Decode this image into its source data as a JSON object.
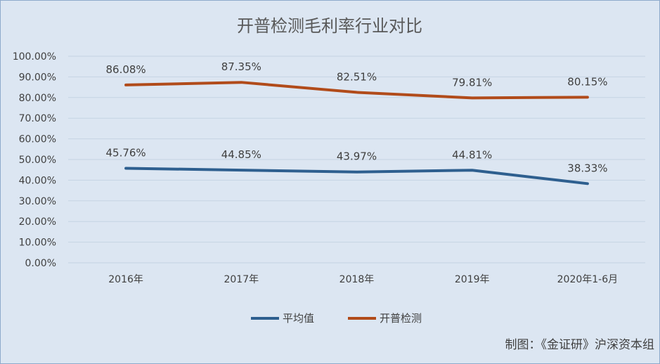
{
  "chart_data": {
    "type": "line",
    "title": "开普检测毛利率行业对比",
    "categories": [
      "2016年",
      "2017年",
      "2018年",
      "2019年",
      "2020年1-6月"
    ],
    "y_ticks": [
      "0.00%",
      "10.00%",
      "20.00%",
      "30.00%",
      "40.00%",
      "50.00%",
      "60.00%",
      "70.00%",
      "80.00%",
      "90.00%",
      "100.00%"
    ],
    "ylim": [
      0,
      100
    ],
    "grid": true,
    "legend_position": "bottom",
    "series": [
      {
        "name": "平均值",
        "color": "#2e5f8f",
        "values": [
          45.76,
          44.85,
          43.97,
          44.81,
          38.33
        ],
        "labels": [
          "45.76%",
          "44.85%",
          "43.97%",
          "44.81%",
          "38.33%"
        ]
      },
      {
        "name": "开普检测",
        "color": "#b14b1a",
        "values": [
          86.08,
          87.35,
          82.51,
          79.81,
          80.15
        ],
        "labels": [
          "86.08%",
          "87.35%",
          "82.51%",
          "79.81%",
          "80.15%"
        ]
      }
    ]
  },
  "credit": "制图：《金证研》沪深资本组"
}
